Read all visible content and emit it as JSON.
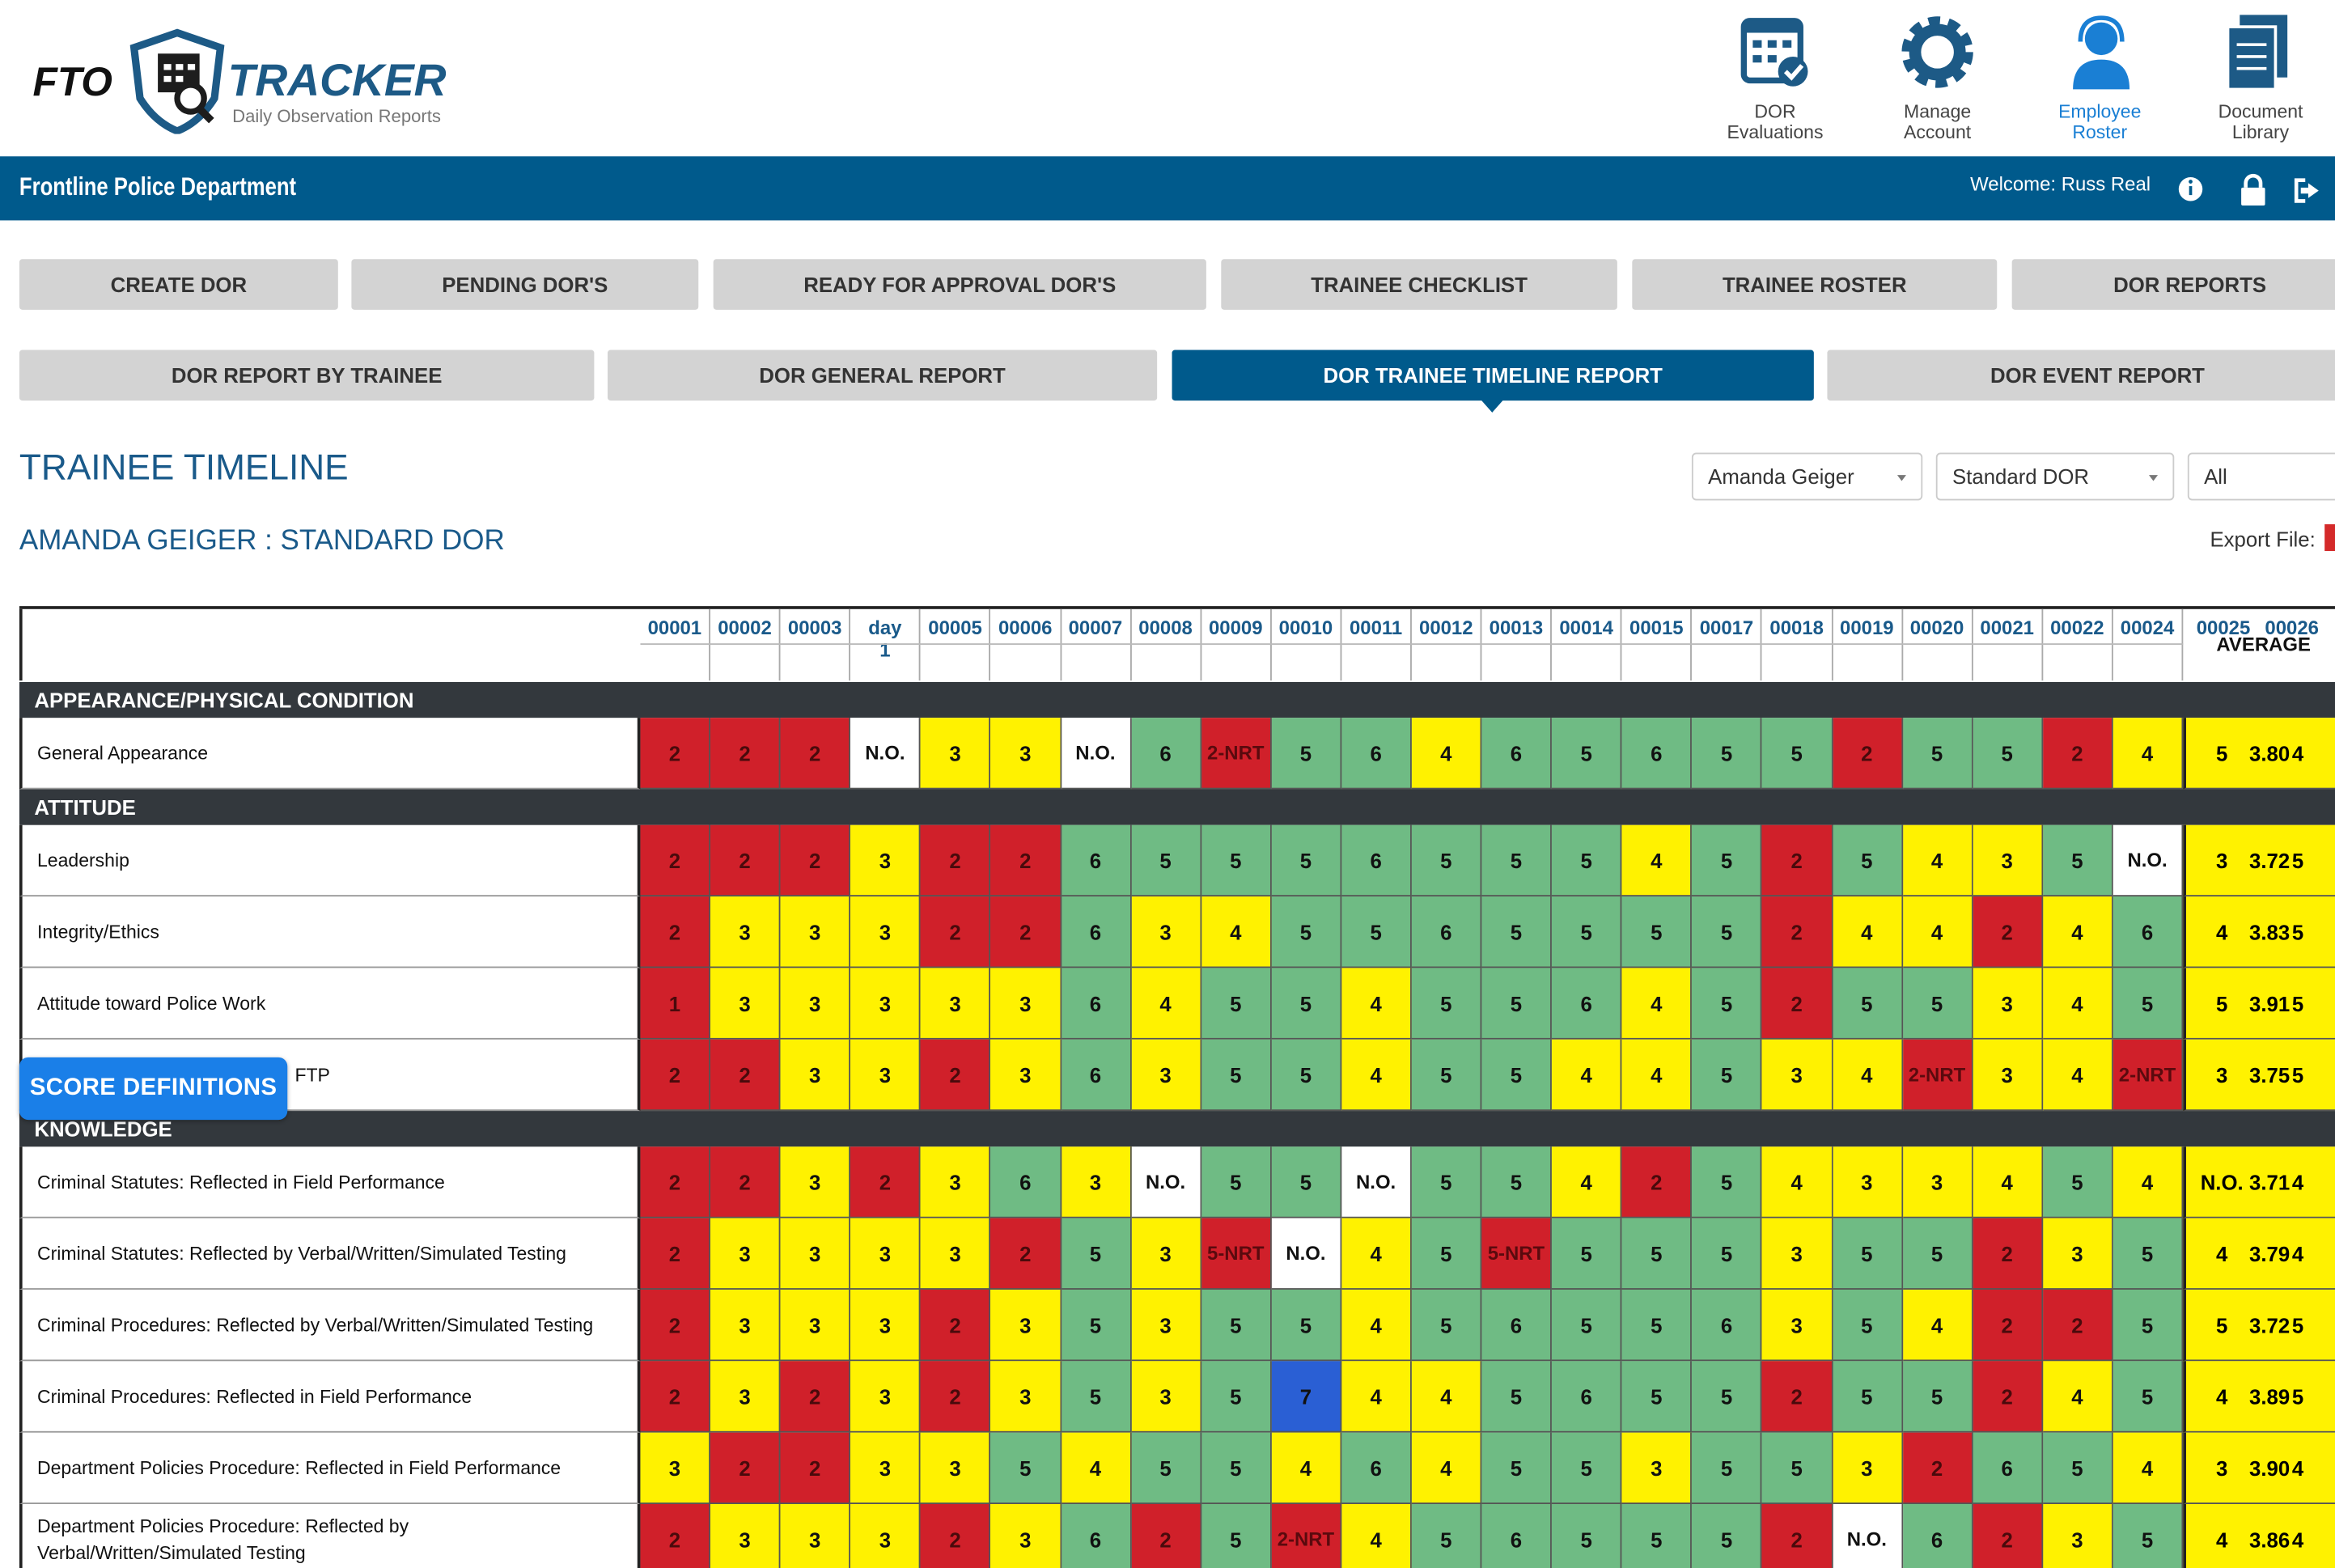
{
  "header": {
    "logo_fto": "FTO",
    "logo_tracker": "TRACKER",
    "logo_subtitle": "Daily Observation Reports",
    "nav": [
      "DOR Evaluations",
      "Manage Account",
      "Employee Roster",
      "Document Library"
    ]
  },
  "bar": {
    "department": "Frontline Police Department",
    "welcome": "Welcome: Russ Real"
  },
  "tabs_row1": [
    "CREATE DOR",
    "PENDING DOR'S",
    "READY FOR APPROVAL DOR'S",
    "TRAINEE CHECKLIST",
    "TRAINEE ROSTER",
    "DOR REPORTS"
  ],
  "tabs_row2": [
    "DOR REPORT BY TRAINEE",
    "DOR GENERAL REPORT",
    "DOR TRAINEE TIMELINE REPORT",
    "DOR EVENT REPORT"
  ],
  "page_title": "TRAINEE TIMELINE",
  "filters": [
    "Amanda Geiger",
    "Standard DOR",
    "All"
  ],
  "subtitle": "AMANDA GEIGER : STANDARD DOR",
  "export_label": "Export File:",
  "score_definitions": "SCORE DEFINITIONS",
  "table": {
    "columns": [
      "00001",
      "00002",
      "00003",
      "day 1",
      "00005",
      "00006",
      "00007",
      "00008",
      "00009",
      "00010",
      "00011",
      "00012",
      "00013",
      "00014",
      "00015",
      "00017",
      "00018",
      "00019",
      "00020",
      "00021",
      "00022",
      "00024"
    ],
    "trailing_columns": [
      "00025",
      "00026"
    ],
    "average_label": "AVERAGE",
    "sections": [
      {
        "title": "APPEARANCE/PHYSICAL CONDITION",
        "rows": [
          {
            "label": "General Appearance",
            "scores": [
              2,
              2,
              2,
              "N.O.",
              3,
              3,
              "N.O.",
              6,
              "2-NRT",
              5,
              6,
              4,
              6,
              5,
              6,
              5,
              5,
              2,
              5,
              5,
              2,
              4
            ],
            "trailing": [
              5,
              4
            ],
            "average": "3.80"
          }
        ]
      },
      {
        "title": "ATTITUDE",
        "rows": [
          {
            "label": "Leadership",
            "scores": [
              2,
              2,
              2,
              3,
              2,
              2,
              6,
              5,
              5,
              5,
              6,
              5,
              5,
              5,
              4,
              5,
              2,
              5,
              4,
              3,
              5,
              "N.O."
            ],
            "trailing": [
              3,
              5
            ],
            "average": "3.72"
          },
          {
            "label": "Integrity/Ethics",
            "scores": [
              2,
              3,
              3,
              3,
              2,
              2,
              6,
              3,
              4,
              5,
              5,
              6,
              5,
              5,
              5,
              5,
              2,
              4,
              4,
              2,
              4,
              6
            ],
            "trailing": [
              4,
              5
            ],
            "average": "3.83"
          },
          {
            "label": "Attitude toward Police Work",
            "scores": [
              1,
              3,
              3,
              3,
              3,
              3,
              6,
              4,
              5,
              5,
              4,
              5,
              5,
              6,
              4,
              5,
              2,
              5,
              5,
              3,
              4,
              5
            ],
            "trailing": [
              5,
              5
            ],
            "average": "3.91"
          },
          {
            "label": "FTP",
            "scores": [
              2,
              2,
              3,
              3,
              2,
              3,
              6,
              3,
              5,
              5,
              4,
              5,
              5,
              4,
              4,
              5,
              3,
              4,
              "2-NRT",
              3,
              4,
              "2-NRT"
            ],
            "trailing": [
              3,
              5
            ],
            "average": "3.75"
          }
        ]
      },
      {
        "title": "KNOWLEDGE",
        "rows": [
          {
            "label": "Criminal Statutes: Reflected in Field Performance",
            "scores": [
              2,
              2,
              3,
              2,
              3,
              6,
              3,
              "N.O.",
              5,
              5,
              "N.O.",
              5,
              5,
              4,
              2,
              5,
              4,
              3,
              3,
              4,
              5,
              4
            ],
            "trailing": [
              "N.O.",
              4
            ],
            "average": "3.71"
          },
          {
            "label": "Criminal Statutes: Reflected by Verbal/Written/Simulated Testing",
            "scores": [
              2,
              3,
              3,
              3,
              3,
              2,
              5,
              3,
              "5-NRT",
              "N.O.",
              4,
              5,
              "5-NRT",
              5,
              5,
              5,
              3,
              5,
              5,
              2,
              3,
              5
            ],
            "trailing": [
              4,
              4
            ],
            "average": "3.79"
          },
          {
            "label": "Criminal Procedures: Reflected by Verbal/Written/Simulated Testing",
            "scores": [
              2,
              3,
              3,
              3,
              2,
              3,
              5,
              3,
              5,
              5,
              4,
              5,
              6,
              5,
              5,
              6,
              3,
              5,
              4,
              2,
              2,
              5
            ],
            "trailing": [
              5,
              5
            ],
            "average": "3.72"
          },
          {
            "label": "Criminal Procedures: Reflected in Field Performance",
            "scores": [
              2,
              3,
              2,
              3,
              2,
              3,
              5,
              3,
              5,
              7,
              4,
              4,
              5,
              6,
              5,
              5,
              2,
              5,
              5,
              2,
              4,
              5
            ],
            "trailing": [
              4,
              5
            ],
            "average": "3.89"
          },
          {
            "label": "Department Policies Procedure: Reflected in Field Performance",
            "scores": [
              3,
              2,
              2,
              3,
              3,
              5,
              4,
              5,
              5,
              4,
              6,
              4,
              5,
              5,
              3,
              5,
              5,
              3,
              2,
              6,
              5,
              4
            ],
            "trailing": [
              3,
              4
            ],
            "average": "3.90"
          },
          {
            "label": "Department Policies Procedure: Reflected by Verbal/Written/Simulated Testing",
            "scores": [
              2,
              3,
              3,
              3,
              2,
              3,
              6,
              2,
              5,
              "2-NRT",
              4,
              5,
              6,
              5,
              5,
              5,
              2,
              "N.O.",
              6,
              2,
              3,
              5
            ],
            "trailing": [
              4,
              4
            ],
            "average": "3.86"
          }
        ]
      }
    ]
  }
}
